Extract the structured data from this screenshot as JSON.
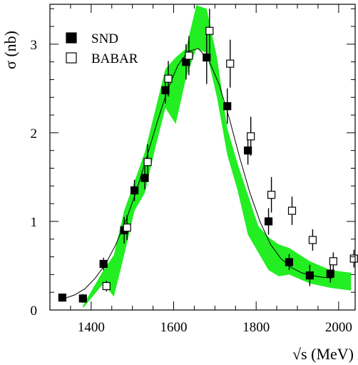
{
  "chart_data": {
    "type": "scatter",
    "title": "",
    "xlabel": "√s (MeV)",
    "ylabel": "σ (nb)",
    "xlim": [
      1300,
      2040
    ],
    "ylim": [
      0,
      3.45
    ],
    "x_ticks": [
      1400,
      1600,
      1800,
      2000
    ],
    "x_tick_labels": [
      "1400",
      "1600",
      "1800",
      "2000"
    ],
    "y_ticks": [
      0,
      1,
      2,
      3
    ],
    "y_tick_labels": [
      "0",
      "1",
      "2",
      "3"
    ],
    "grid": false,
    "legend_placement": "top-left",
    "colors": {
      "band": "#22ee22",
      "markers": "#000000",
      "curve": "#000000"
    },
    "series": [
      {
        "name": "SND",
        "marker": "filled-square",
        "x": [
          1330,
          1380,
          1430,
          1480,
          1505,
          1530,
          1580,
          1630,
          1680,
          1730,
          1780,
          1830,
          1880,
          1930,
          1980
        ],
        "y": [
          0.14,
          0.13,
          0.52,
          0.9,
          1.35,
          1.49,
          2.48,
          2.8,
          2.85,
          2.3,
          1.8,
          1.0,
          0.54,
          0.39,
          0.41
        ],
        "err": [
          0.04,
          0.05,
          0.07,
          0.15,
          0.12,
          0.13,
          0.15,
          0.2,
          0.3,
          0.2,
          0.16,
          0.15,
          0.09,
          0.12,
          0.1
        ]
      },
      {
        "name": "BABAR",
        "marker": "open-square",
        "x": [
          1437,
          1487,
          1537,
          1587,
          1637,
          1687,
          1737,
          1787,
          1837,
          1887,
          1937,
          1987,
          2037
        ],
        "y": [
          0.27,
          0.93,
          1.67,
          2.61,
          2.87,
          3.15,
          2.78,
          1.96,
          1.3,
          1.12,
          0.79,
          0.55,
          0.58
        ],
        "err": [
          0.06,
          0.14,
          0.2,
          0.2,
          0.22,
          0.25,
          0.27,
          0.22,
          0.2,
          0.16,
          0.12,
          0.1,
          0.1
        ]
      }
    ],
    "band": {
      "x": [
        1380,
        1430,
        1455,
        1480,
        1505,
        1530,
        1555,
        1580,
        1605,
        1630,
        1655,
        1680,
        1705,
        1730,
        1755,
        1780,
        1805,
        1830,
        1855,
        1880,
        1930,
        1980,
        2030
      ],
      "upper": [
        0.05,
        0.45,
        0.62,
        1.12,
        1.45,
        1.78,
        2.25,
        2.72,
        2.85,
        2.95,
        3.44,
        3.4,
        2.85,
        2.05,
        1.65,
        1.3,
        0.95,
        0.82,
        0.74,
        0.7,
        0.55,
        0.45,
        0.42
      ],
      "lower": [
        0.02,
        0.3,
        0.15,
        0.62,
        1.12,
        1.32,
        1.82,
        2.28,
        2.1,
        2.62,
        2.95,
        2.9,
        2.4,
        1.75,
        1.35,
        0.85,
        0.65,
        0.45,
        0.38,
        0.4,
        0.3,
        0.25,
        0.22
      ]
    },
    "curve": {
      "x": [
        1335,
        1360,
        1385,
        1410,
        1435,
        1460,
        1485,
        1510,
        1535,
        1560,
        1585,
        1610,
        1635,
        1660,
        1685,
        1710,
        1735,
        1760,
        1785,
        1810,
        1835,
        1860,
        1885,
        1910,
        1935,
        1960,
        1985
      ],
      "y": [
        0.13,
        0.17,
        0.24,
        0.36,
        0.52,
        0.74,
        1.02,
        1.35,
        1.73,
        2.12,
        2.48,
        2.76,
        2.92,
        2.95,
        2.82,
        2.55,
        2.16,
        1.72,
        1.32,
        0.99,
        0.74,
        0.58,
        0.48,
        0.42,
        0.39,
        0.37,
        0.36
      ]
    }
  }
}
